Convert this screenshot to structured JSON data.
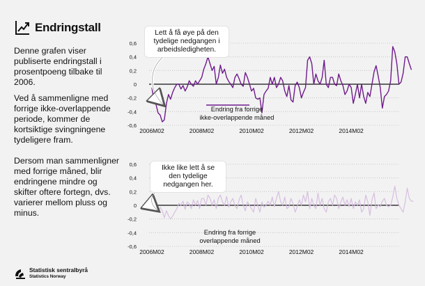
{
  "header": {
    "title": "Endringstall",
    "icon": "chart-trend-icon"
  },
  "sidebar": {
    "para1": "Denne grafen viser publiserte endringstall i prosentpoeng tilbake til 2006.",
    "para2": "Ved å sammenligne med forrige ikke-overlappende periode, kommer de kortsiktige svingningene tydeligere fram.",
    "para3": "Dersom man sammenligner med forrige måned, blir endringene mindre og skifter oftere fortegn, dvs. varierer mellom pluss og minus."
  },
  "logo": {
    "name": "Statistisk sentralbyrå",
    "name_en": "Statistics Norway"
  },
  "callouts": {
    "top": "Lett å få øye på den tydelige nedgangen i arbeidsledigheten.",
    "bottom": "Ikke like lett å se den tydelige nedgangen her."
  },
  "colors": {
    "series1": "#6f1a8c",
    "series2": "#d7bfe0",
    "zero": "#111111",
    "grid": "#bdbdbd"
  },
  "chart_data": [
    {
      "type": "line",
      "title": "",
      "xlabel": "",
      "ylabel": "",
      "ylim": [
        -0.6,
        0.6
      ],
      "yticks": [
        "0,6",
        "0,4",
        "0,2",
        "0",
        "-0,2",
        "-0,4",
        "-0,6"
      ],
      "xticks": [
        "2006M02",
        "2008M02",
        "2010M02",
        "2012M02",
        "2014M02"
      ],
      "legend": "Endring fra forrige ikke-overlappende måned",
      "series": [
        {
          "name": "Endring fra forrige ikke-overlappende måned",
          "start": "2006M02",
          "values": [
            -0.05,
            -0.25,
            -0.3,
            -0.42,
            -0.45,
            -0.55,
            -0.52,
            -0.28,
            -0.15,
            -0.22,
            -0.12,
            -0.05,
            0.0,
            0.0,
            -0.07,
            -0.02,
            -0.1,
            -0.04,
            0.05,
            0.0,
            -0.03,
            0.05,
            0.0,
            0.05,
            0.1,
            0.22,
            0.3,
            0.4,
            0.3,
            0.2,
            0.26,
            0.0,
            0.1,
            0.28,
            0.16,
            0.22,
            0.1,
            0.04,
            0.0,
            -0.05,
            0.1,
            0.15,
            0.08,
            0.0,
            -0.03,
            0.17,
            0.1,
            0.0,
            -0.1,
            -0.06,
            -0.2,
            -0.22,
            -0.2,
            -0.42,
            -0.15,
            -0.1,
            -0.06,
            0.1,
            0.0,
            0.1,
            -0.05,
            0.0,
            0.1,
            0.05,
            -0.1,
            -0.18,
            -0.02,
            -0.23,
            -0.26,
            -0.02,
            0.03,
            -0.05,
            -0.2,
            -0.12,
            -0.05,
            0.35,
            0.4,
            0.3,
            0.0,
            0.15,
            0.05,
            0.0,
            0.1,
            0.35,
            0.0,
            -0.05,
            0.1,
            0.1,
            0.0,
            -0.02,
            0.15,
            0.05,
            -0.02,
            -0.15,
            -0.1,
            0.0,
            -0.05,
            -0.28,
            -0.15,
            0.0,
            -0.2,
            0.0,
            -0.18,
            -0.28,
            -0.12,
            -0.18,
            0.0,
            0.18,
            0.27,
            0.12,
            -0.05,
            -0.35,
            -0.18,
            -0.15,
            -0.1,
            0.05,
            0.55,
            0.47,
            0.3,
            0.0,
            0.03,
            0.16,
            0.4,
            0.4,
            0.3,
            0.21
          ]
        }
      ]
    },
    {
      "type": "line",
      "title": "",
      "xlabel": "",
      "ylabel": "",
      "ylim": [
        -0.6,
        0.6
      ],
      "yticks": [
        "0,6",
        "0,4",
        "0,2",
        "0",
        "-0,2",
        "-0,4",
        "-0,6"
      ],
      "xticks": [
        "2006M02",
        "2008M02",
        "2010M02",
        "2012M02",
        "2014M02"
      ],
      "legend": "Endring fra forrige overlappende måned",
      "series": [
        {
          "name": "Endring fra forrige overlappende måned",
          "start": "2006M02",
          "values": [
            0.0,
            -0.05,
            -0.02,
            -0.1,
            -0.03,
            -0.08,
            -0.18,
            -0.08,
            -0.15,
            -0.2,
            -0.16,
            -0.1,
            -0.05,
            0.03,
            0.0,
            0.06,
            -0.06,
            0.05,
            0.02,
            -0.05,
            0.08,
            0.0,
            0.07,
            -0.05,
            0.1,
            0.1,
            0.0,
            0.15,
            0.1,
            0.0,
            0.08,
            -0.05,
            0.1,
            0.15,
            0.05,
            0.0,
            0.13,
            -0.03,
            0.05,
            0.1,
            0.0,
            -0.05,
            0.08,
            0.15,
            0.0,
            -0.08,
            0.05,
            0.0,
            -0.05,
            -0.1,
            0.1,
            0.0,
            -0.1,
            0.05,
            -0.03,
            0.0,
            0.06,
            0.0,
            0.12,
            -0.02,
            0.1,
            0.2,
            0.05,
            0.0,
            0.12,
            -0.05,
            -0.02,
            0.1,
            0.02,
            -0.1,
            -0.02,
            0.08,
            0.0,
            0.15,
            0.05,
            0.2,
            -0.05,
            0.1,
            0.0,
            -0.05,
            0.18,
            0.0,
            0.1,
            -0.05,
            -0.1,
            0.05,
            0.1,
            0.0,
            0.15,
            0.1,
            -0.05,
            0.05,
            0.12,
            0.0,
            0.08,
            -0.02,
            0.1,
            -0.05,
            0.05,
            0.0,
            0.08,
            -0.1,
            -0.05,
            0.15,
            0.05,
            -0.15,
            0.08,
            0.18,
            -0.05,
            0.0,
            -0.02,
            0.06,
            0.1,
            0.0,
            -0.02,
            0.0,
            0.12,
            0.28,
            0.1,
            0.0,
            -0.05,
            -0.1,
            0.05,
            0.25,
            0.1,
            0.06,
            0.06
          ]
        }
      ]
    }
  ]
}
